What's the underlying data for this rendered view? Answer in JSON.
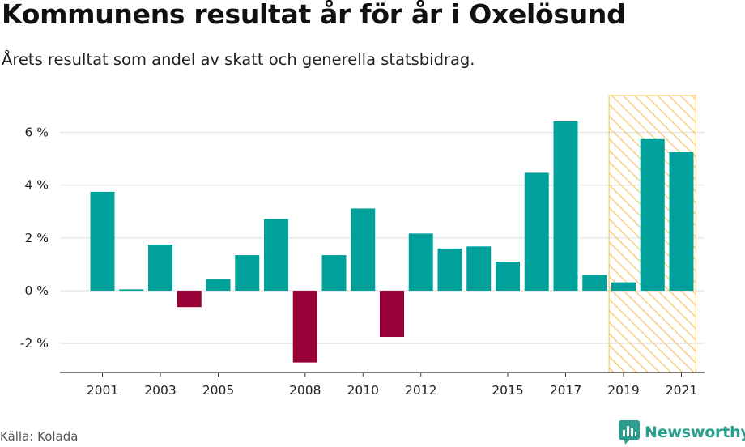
{
  "header": {
    "title": "Kommunens resultat år för år i Oxelösund",
    "subtitle": "Årets resultat som andel av skatt och generella statsbidrag."
  },
  "footer": {
    "source": "Källa: Kolada",
    "brand": "Newsworthy"
  },
  "colors": {
    "positive": "#00a19a",
    "negative": "#990038",
    "highlight_hatch": "#f5c86a",
    "grid": "#dddddd",
    "brand": "#2a9d8f"
  },
  "chart_data": {
    "type": "bar",
    "categories": [
      2001,
      2002,
      2003,
      2004,
      2005,
      2006,
      2007,
      2008,
      2009,
      2010,
      2011,
      2012,
      2013,
      2014,
      2015,
      2016,
      2017,
      2018,
      2019,
      2020,
      2021
    ],
    "values": [
      3.75,
      0.05,
      1.75,
      -0.62,
      0.45,
      1.35,
      2.72,
      -2.72,
      1.35,
      3.12,
      -1.75,
      2.17,
      1.6,
      1.68,
      1.1,
      4.47,
      6.42,
      0.6,
      0.32,
      5.75,
      5.25
    ],
    "x_tick_labels": [
      "2001",
      "2003",
      "2005",
      "2008",
      "2010",
      "2012",
      "2015",
      "2017",
      "2019",
      "2021"
    ],
    "y_ticks": [
      -2,
      0,
      2,
      4,
      6
    ],
    "y_tick_labels": [
      "-2 %",
      "0 %",
      "2 %",
      "4 %",
      "6 %"
    ],
    "ylim": [
      -3.1,
      7.4
    ],
    "highlight_range": [
      2019,
      2021
    ],
    "grid": true,
    "legend": "none"
  }
}
